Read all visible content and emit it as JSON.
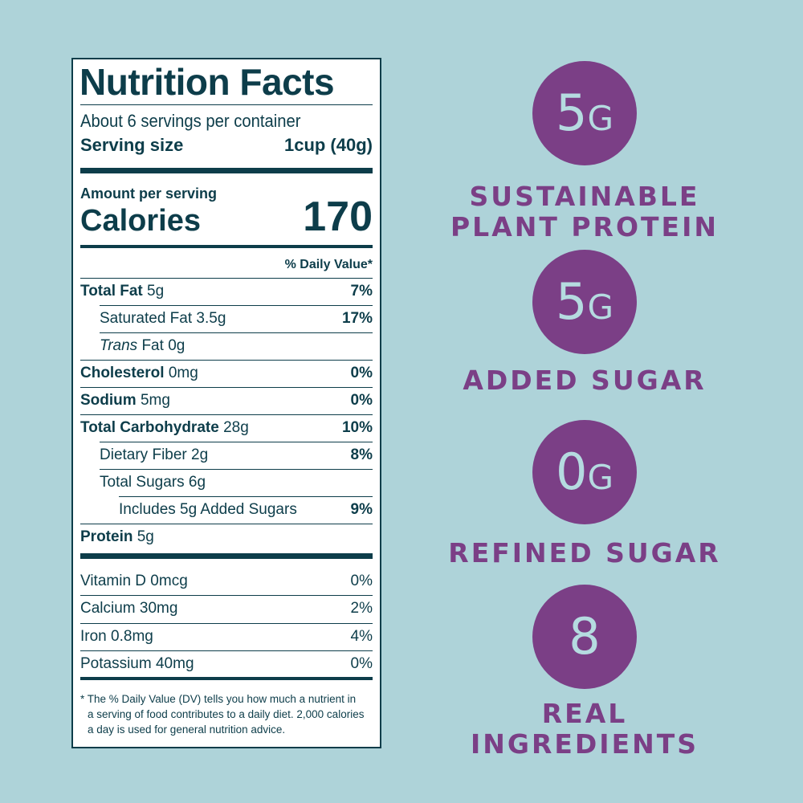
{
  "nutrition_label": {
    "title": "Nutrition Facts",
    "servings": "About 6 servings per container",
    "serving_size": {
      "label": "Serving size",
      "value": "1cup (40g)"
    },
    "amount_per_serving": "Amount per serving",
    "calories": {
      "label": "Calories",
      "value": "170"
    },
    "dv_header": "% Daily Value*",
    "nutrients": [
      {
        "name": "Total Fat",
        "amount": "5g",
        "dv": "7%",
        "level": 0
      },
      {
        "name": "Saturated Fat",
        "amount": "3.5g",
        "dv": "17%",
        "level": 1
      },
      {
        "name_italic": "Trans",
        "name": "Fat",
        "amount": "0g",
        "level": 1
      },
      {
        "name": "Cholesterol",
        "amount": "0mg",
        "dv": "0%",
        "level": 0
      },
      {
        "name": "Sodium",
        "amount": "5mg",
        "dv": "0%",
        "level": 0
      },
      {
        "name": "Total Carbohydrate",
        "amount": "28g",
        "dv": "10%",
        "level": 0
      },
      {
        "name": "Dietary Fiber",
        "amount": "2g",
        "dv": "8%",
        "level": 1
      },
      {
        "name": "Total Sugars",
        "amount": "6g",
        "level": 1
      },
      {
        "name": "Includes 5g Added Sugars",
        "dv": "9%",
        "level": 2
      },
      {
        "name": "Protein",
        "amount": "5g",
        "level": 0
      }
    ],
    "vitamins": [
      {
        "name": "Vitamin D",
        "amount": "0mcg",
        "dv": "0%"
      },
      {
        "name": "Calcium",
        "amount": "30mg",
        "dv": "2%"
      },
      {
        "name": "Iron",
        "amount": "0.8mg",
        "dv": "4%"
      },
      {
        "name": "Potassium",
        "amount": "40mg",
        "dv": "0%"
      }
    ],
    "footnote": [
      "* The % Daily Value (DV) tells you how much a nutrient in",
      "a serving of food contributes to a daily diet. 2,000 calories",
      "a day is used for general nutrition advice."
    ]
  },
  "badges": [
    {
      "number": "5",
      "unit": "G",
      "caption": [
        "SUSTAINABLE",
        "PLANT PROTEIN"
      ]
    },
    {
      "number": "5",
      "unit": "G",
      "caption": [
        "ADDED SUGAR"
      ]
    },
    {
      "number": "0",
      "unit": "G",
      "caption": [
        "REFINED SUGAR"
      ]
    },
    {
      "number": "8",
      "caption": [
        "REAL INGREDIENTS"
      ]
    }
  ]
}
